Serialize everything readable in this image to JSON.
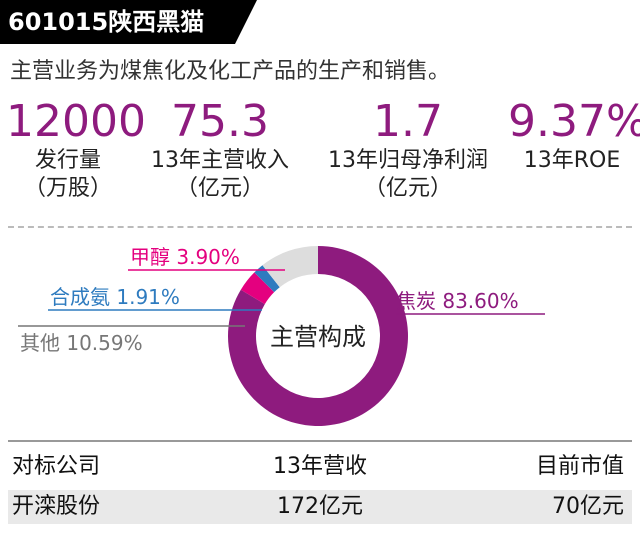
{
  "header": {
    "title": "601015陕西黑猫"
  },
  "subtitle": "主营业务为煤焦化及化工产品的生产和销售。",
  "stats": [
    {
      "value": "12000",
      "label_line1": "发行量",
      "label_line2": "（万股）"
    },
    {
      "value": "75.3",
      "label_line1": "13年主营收入",
      "label_line2": "（亿元）"
    },
    {
      "value": "1.7",
      "label_line1": "13年归母净利润",
      "label_line2": "（亿元）"
    },
    {
      "value": "9.37%",
      "label_line1": "13年ROE",
      "label_line2": ""
    }
  ],
  "chart_data": {
    "type": "pie",
    "title": "主营构成",
    "slices": [
      {
        "name": "焦炭",
        "value": 83.6,
        "label": "焦炭 83.60%",
        "color": "#8e1b7e"
      },
      {
        "name": "甲醇",
        "value": 3.9,
        "label": "甲醇 3.90%",
        "color": "#e4007f"
      },
      {
        "name": "合成氨",
        "value": 1.91,
        "label": "合成氨 1.91%",
        "color": "#2e7bbf"
      },
      {
        "name": "其他",
        "value": 10.59,
        "label": "其他 10.59%",
        "color": "#dddddd"
      }
    ],
    "label_colors": {
      "焦炭": "#8e1b7e",
      "甲醇": "#e4007f",
      "合成氨": "#2e7bbf",
      "其他": "#777777"
    }
  },
  "table": {
    "headers": [
      "对标公司",
      "13年营收",
      "目前市值"
    ],
    "rows": [
      [
        "开滦股份",
        "172亿元",
        "70亿元"
      ]
    ]
  }
}
